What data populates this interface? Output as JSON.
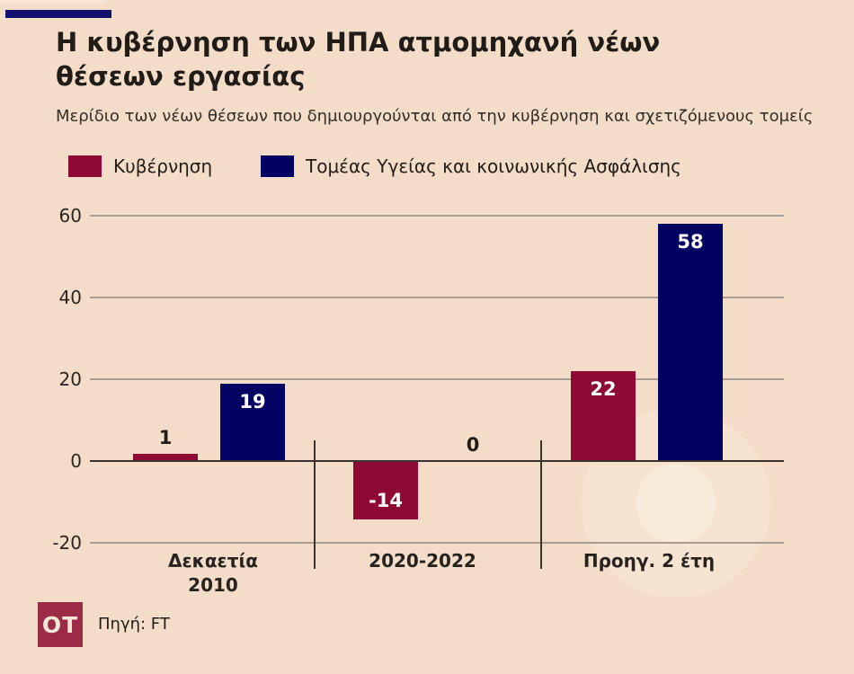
{
  "page": {
    "background": "#f3ddc8"
  },
  "header": {
    "accent_color": "#11106f",
    "title_line1": "Η κυβέρνηση των ΗΠΑ ατμομηχανή νέων",
    "title_line2": "θέσεων εργασίας",
    "subtitle": "Μερίδιο των νέων θέσεων που δημιουργούνται από την κυβέρνηση και σχετιζόμενους τομείς"
  },
  "legend": [
    {
      "label": "Κυβέρνηση",
      "color": "#8e0a34"
    },
    {
      "label": "Τομέας Υγείας και κοινωνικής Ασφάλισης",
      "color": "#020263"
    }
  ],
  "chart_data": {
    "type": "bar",
    "categories": [
      "Δεκαετία 2010",
      "2020-2022",
      "Προηγ. 2 έτη"
    ],
    "categories_display": [
      [
        "Δεκαετία",
        "2010"
      ],
      [
        "2020-2022"
      ],
      [
        "Προηγ. 2 έτη"
      ]
    ],
    "series": [
      {
        "name": "Κυβέρνηση",
        "color": "#8e0a34",
        "values": [
          1,
          -14,
          22
        ]
      },
      {
        "name": "Τομέας Υγείας και κοινωνικής Ασφάλισης",
        "color": "#020263",
        "values": [
          19,
          0,
          58
        ]
      }
    ],
    "yticks": [
      60,
      40,
      20,
      0,
      -20
    ],
    "ylim": [
      -20,
      60
    ],
    "grid": true,
    "value_labels": [
      [
        "1",
        "-14",
        "22"
      ],
      [
        "19",
        "0",
        "58"
      ]
    ],
    "legend_position": "top"
  },
  "footer": {
    "logo": "OT",
    "logo_color": "#9c2b48",
    "source": "Πηγή: FT"
  }
}
